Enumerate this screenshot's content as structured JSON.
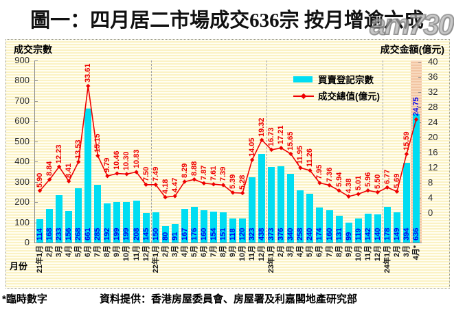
{
  "title": "圖一：四月居二市場成交636宗 按月增逾六成",
  "watermark": "am730",
  "legend": {
    "bar_label": "買賣登記宗數",
    "line_label": "成交總值(億元)"
  },
  "axes": {
    "left_title": "成交宗數",
    "right_title": "成交金額(億元)",
    "x_title": "月份"
  },
  "footer": {
    "note": "*臨時數字",
    "source": "資料提供：香港房屋委員會、房屋署及利嘉閣地產研究部"
  },
  "colors": {
    "bar": "#00ddf2",
    "bar_label": "#0000f0",
    "line": "#ee0000",
    "line_label": "#ee0000",
    "highlight_line_label": "#0000f0",
    "highlight_band_light": "#f8d9be",
    "highlight_band_dark": "#f2c5a2",
    "plot_stripe_light": "#fffef2",
    "plot_stripe_dark": "#fbf2c4"
  },
  "chart_data": {
    "type": "bar+line dual-axis combo",
    "title": "圖一：四月居二市場成交636宗 按月增逾六成",
    "categories": [
      "21年1月",
      "2月",
      "3月",
      "4月",
      "5月",
      "6月",
      "7月",
      "8月",
      "9月",
      "10月",
      "11月",
      "12月",
      "22年1月",
      "2月",
      "3月",
      "4月",
      "5月",
      "6月",
      "7月",
      "8月",
      "9月",
      "10月",
      "11月",
      "12月",
      "23年1月",
      "2月",
      "3月",
      "4月",
      "5月",
      "6月",
      "7月",
      "8月",
      "9月",
      "10月",
      "11月",
      "12月",
      "24年1月",
      "2月",
      "3月",
      "4月*"
    ],
    "series": [
      {
        "name": "買賣登記宗數",
        "type": "bar",
        "axis": "left",
        "values": [
          114,
          168,
          233,
          156,
          268,
          661,
          285,
          192,
          199,
          199,
          208,
          145,
          150,
          80,
          91,
          167,
          176,
          160,
          154,
          151,
          118,
          120,
          323,
          438,
          373,
          376,
          340,
          258,
          240,
          174,
          160,
          131,
          99,
          119,
          142,
          140,
          178,
          149,
          394,
          636
        ]
      },
      {
        "name": "成交總值(億元)",
        "type": "line",
        "axis": "right",
        "values": [
          5.9,
          8.84,
          12.23,
          8.41,
          13.53,
          33.61,
          15.15,
          9.79,
          10.46,
          10.3,
          10.83,
          7.5,
          7.49,
          4.18,
          4.47,
          8.29,
          8.88,
          7.87,
          7.61,
          7.39,
          5.39,
          5.28,
          14.05,
          19.32,
          16.73,
          17.21,
          15.65,
          11.95,
          11.26,
          7.95,
          7.36,
          5.94,
          4.38,
          5.01,
          5.96,
          5.5,
          6.77,
          5.69,
          15.59,
          24.75
        ]
      }
    ],
    "left_axis": {
      "label": "成交宗數",
      "ticks": [
        0,
        100,
        200,
        300,
        400,
        500,
        600,
        700,
        800,
        900
      ],
      "range": [
        0,
        900
      ]
    },
    "right_axis": {
      "label": "成交金額(億元)",
      "ticks": [
        0,
        4,
        8,
        12,
        16,
        20,
        24,
        28,
        32,
        36,
        40
      ],
      "range": [
        0,
        40
      ]
    },
    "x_axis_label": "月份",
    "year_separators_after_index": [
      11,
      23,
      35
    ],
    "highlight_index": 39,
    "legend_position": "inside-top-right",
    "grid": "striped background, dashed year separators",
    "value_label_decimals_line": 2
  }
}
